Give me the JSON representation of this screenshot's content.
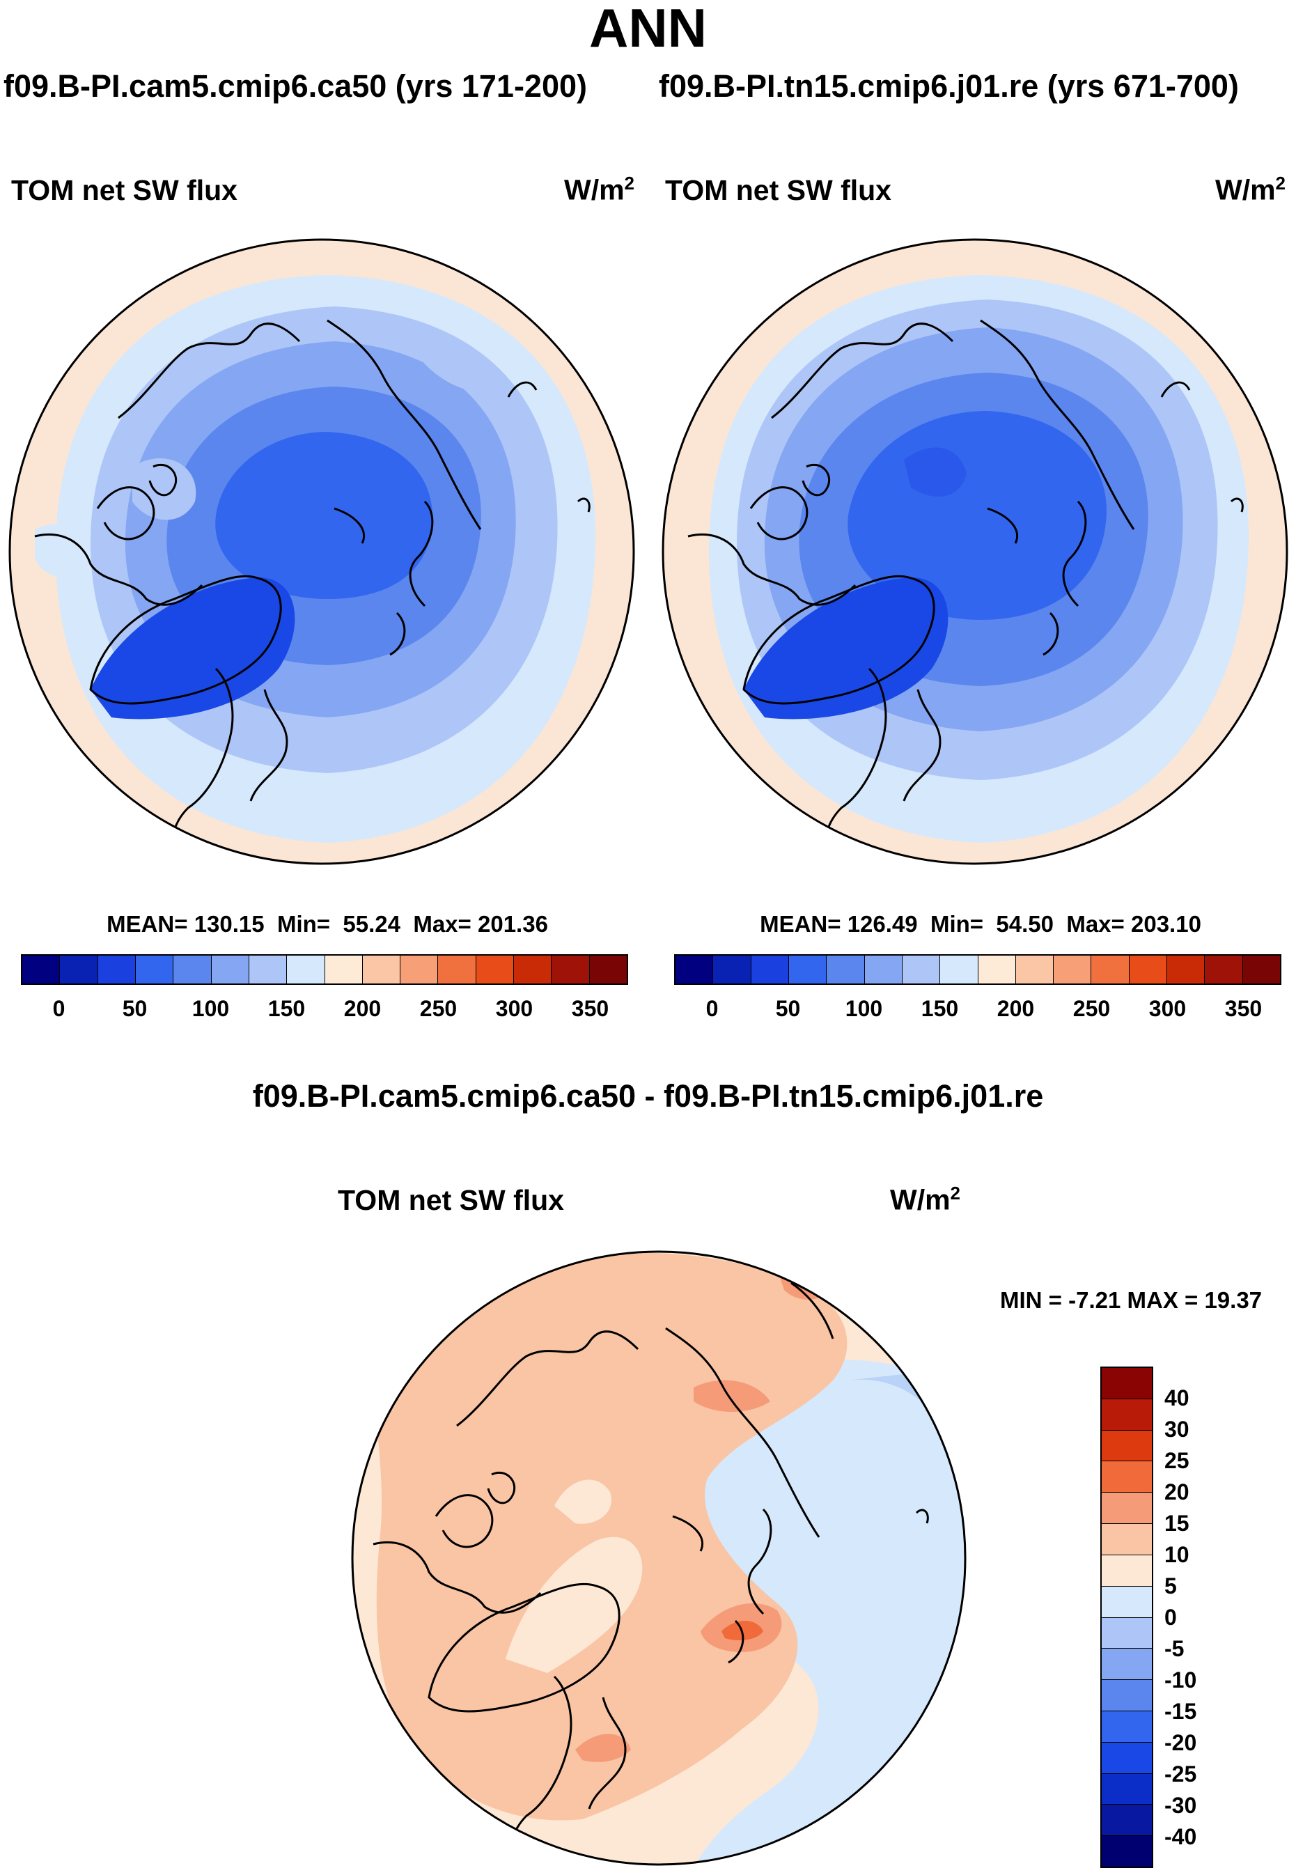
{
  "title": "ANN",
  "left_panel": {
    "case_title": "f09.B-PI.cam5.cmip6.ca50 (yrs 171-200)",
    "variable": "TOM net SW flux",
    "units_base": "W/m",
    "units_exp": "2",
    "stats": {
      "mean_label": "MEAN=",
      "mean": "130.15",
      "min_label": "Min=",
      "min": "55.24",
      "max_label": "Max=",
      "max": "201.36"
    }
  },
  "right_panel": {
    "case_title": "f09.B-PI.tn15.cmip6.j01.re (yrs 671-700)",
    "variable": "TOM net SW flux",
    "units_base": "W/m",
    "units_exp": "2",
    "stats": {
      "mean_label": "MEAN=",
      "mean": "126.49",
      "min_label": "Min=",
      "min": "54.50",
      "max_label": "Max=",
      "max": "203.10"
    }
  },
  "abs_colorbar": {
    "colors": [
      "#000080",
      "#0a22b4",
      "#1a40e0",
      "#3366ee",
      "#5a86ee",
      "#85a6f2",
      "#aec6f7",
      "#d6e8fb",
      "#fdebd8",
      "#fbc6a6",
      "#f7a078",
      "#f0703e",
      "#e84c18",
      "#c82b06",
      "#9e1208",
      "#7a0505"
    ],
    "tick_labels": [
      "0",
      "50",
      "100",
      "150",
      "200",
      "250",
      "300",
      "350"
    ]
  },
  "diff_panel": {
    "title": "f09.B-PI.cam5.cmip6.ca50 - f09.B-PI.tn15.cmip6.j01.re",
    "variable": "TOM net SW flux",
    "units_base": "W/m",
    "units_exp": "2",
    "minmax": {
      "min_label": "MIN =",
      "min": "-7.21",
      "max_label": "MAX =",
      "max": "19.37"
    }
  },
  "diff_colorbar": {
    "colors_top_to_bottom": [
      "#8b0404",
      "#b81c08",
      "#de3a10",
      "#f06a3a",
      "#f59b78",
      "#f9c5a5",
      "#fde8d5",
      "#d6e8fb",
      "#aec6f7",
      "#85a6f2",
      "#5a86ee",
      "#3366ee",
      "#1a48e6",
      "#0b2ec8",
      "#0818a0",
      "#000070"
    ],
    "tick_labels_top_to_bottom": [
      "40",
      "30",
      "25",
      "20",
      "15",
      "10",
      "5",
      "0",
      "-5",
      "-10",
      "-15",
      "-20",
      "-25",
      "-30",
      "-40"
    ]
  },
  "colors": {
    "outer_pale": "#fbe6d6",
    "very_light_blue": "#d6e8fb",
    "light_blue": "#aec6f7",
    "mid_blue": "#85a6f2",
    "blue": "#5a86ee",
    "deep_blue": "#3366ee",
    "dark_blue": "#1a48e6",
    "diff_pale": "#fde8d5",
    "diff_peach": "#f9c5a5",
    "diff_orange": "#f59b78",
    "diff_blue": "#d6e8fb"
  }
}
